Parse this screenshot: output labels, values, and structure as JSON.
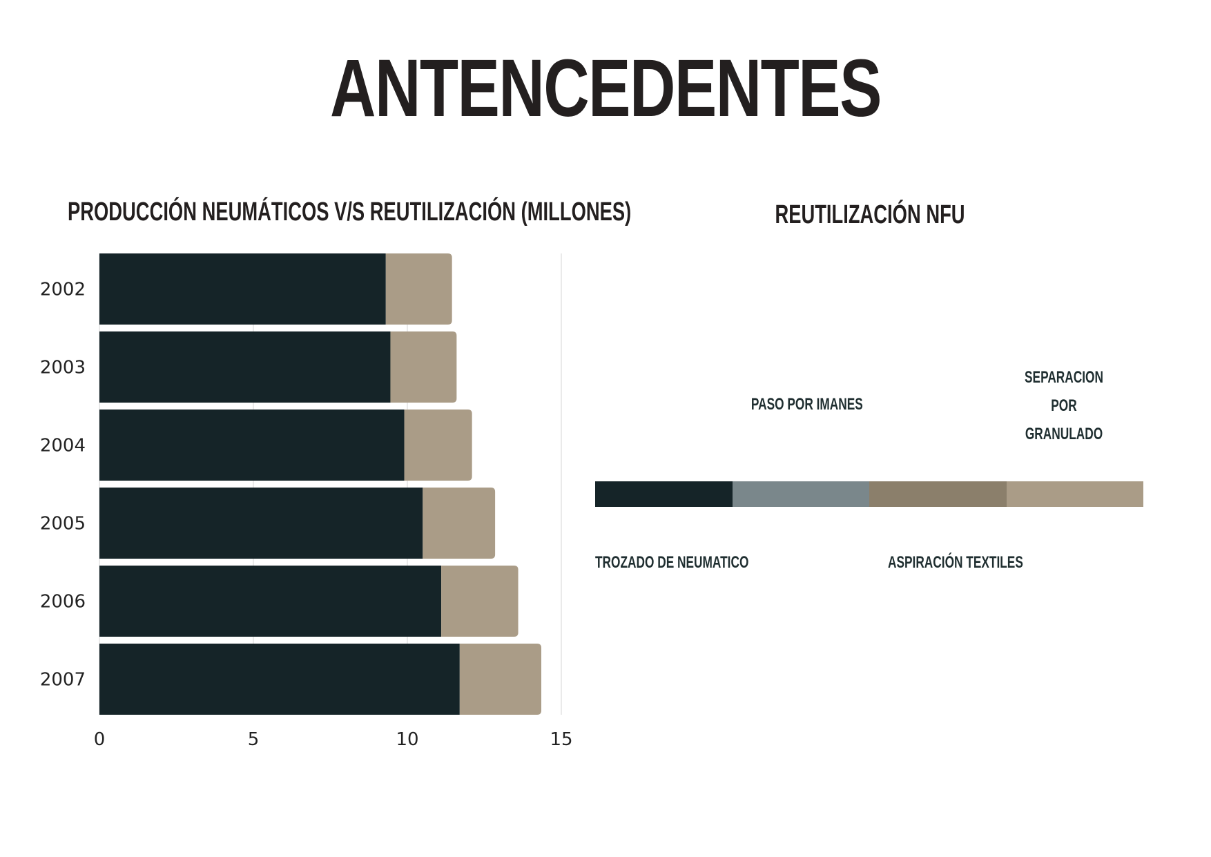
{
  "page": {
    "title": "ANTENCEDENTES"
  },
  "chart_data": [
    {
      "type": "bar",
      "orientation": "horizontal",
      "stacked": true,
      "title": "PRODUCCIÓN NEUMÁTICOS V/S REUTILIZACIÓN (MILLONES)",
      "categories": [
        "2002",
        "2003",
        "2004",
        "2005",
        "2006",
        "2007"
      ],
      "series": [
        {
          "name": "Producción",
          "color": "#152428",
          "values": [
            9.3,
            9.45,
            9.9,
            10.5,
            11.1,
            11.7
          ]
        },
        {
          "name": "Reutilización",
          "color": "#aa9c87",
          "values": [
            2.15,
            2.15,
            2.2,
            2.35,
            2.5,
            2.65
          ]
        }
      ],
      "xlim": [
        0,
        15
      ],
      "xticks": [
        "0",
        "5",
        "10",
        "15"
      ],
      "xlabel": "",
      "ylabel": "",
      "grid": true
    },
    {
      "type": "bar",
      "orientation": "horizontal",
      "stacked": true,
      "title": "REUTILIZACIÓN NFU",
      "segments": [
        {
          "label": "TROZADO DE NEUMATICO",
          "value": 1,
          "color": "#152428",
          "label_position": "below"
        },
        {
          "label": "PASO POR IMANES",
          "value": 1,
          "color": "#7a878b",
          "label_position": "above"
        },
        {
          "label": "ASPIRACIÓN TEXTILES",
          "value": 1,
          "color": "#8b7f6b",
          "label_position": "below"
        },
        {
          "label": "SEPARACION POR GRANULADO",
          "value": 1,
          "color": "#aa9c87",
          "label_position": "above"
        }
      ]
    }
  ]
}
